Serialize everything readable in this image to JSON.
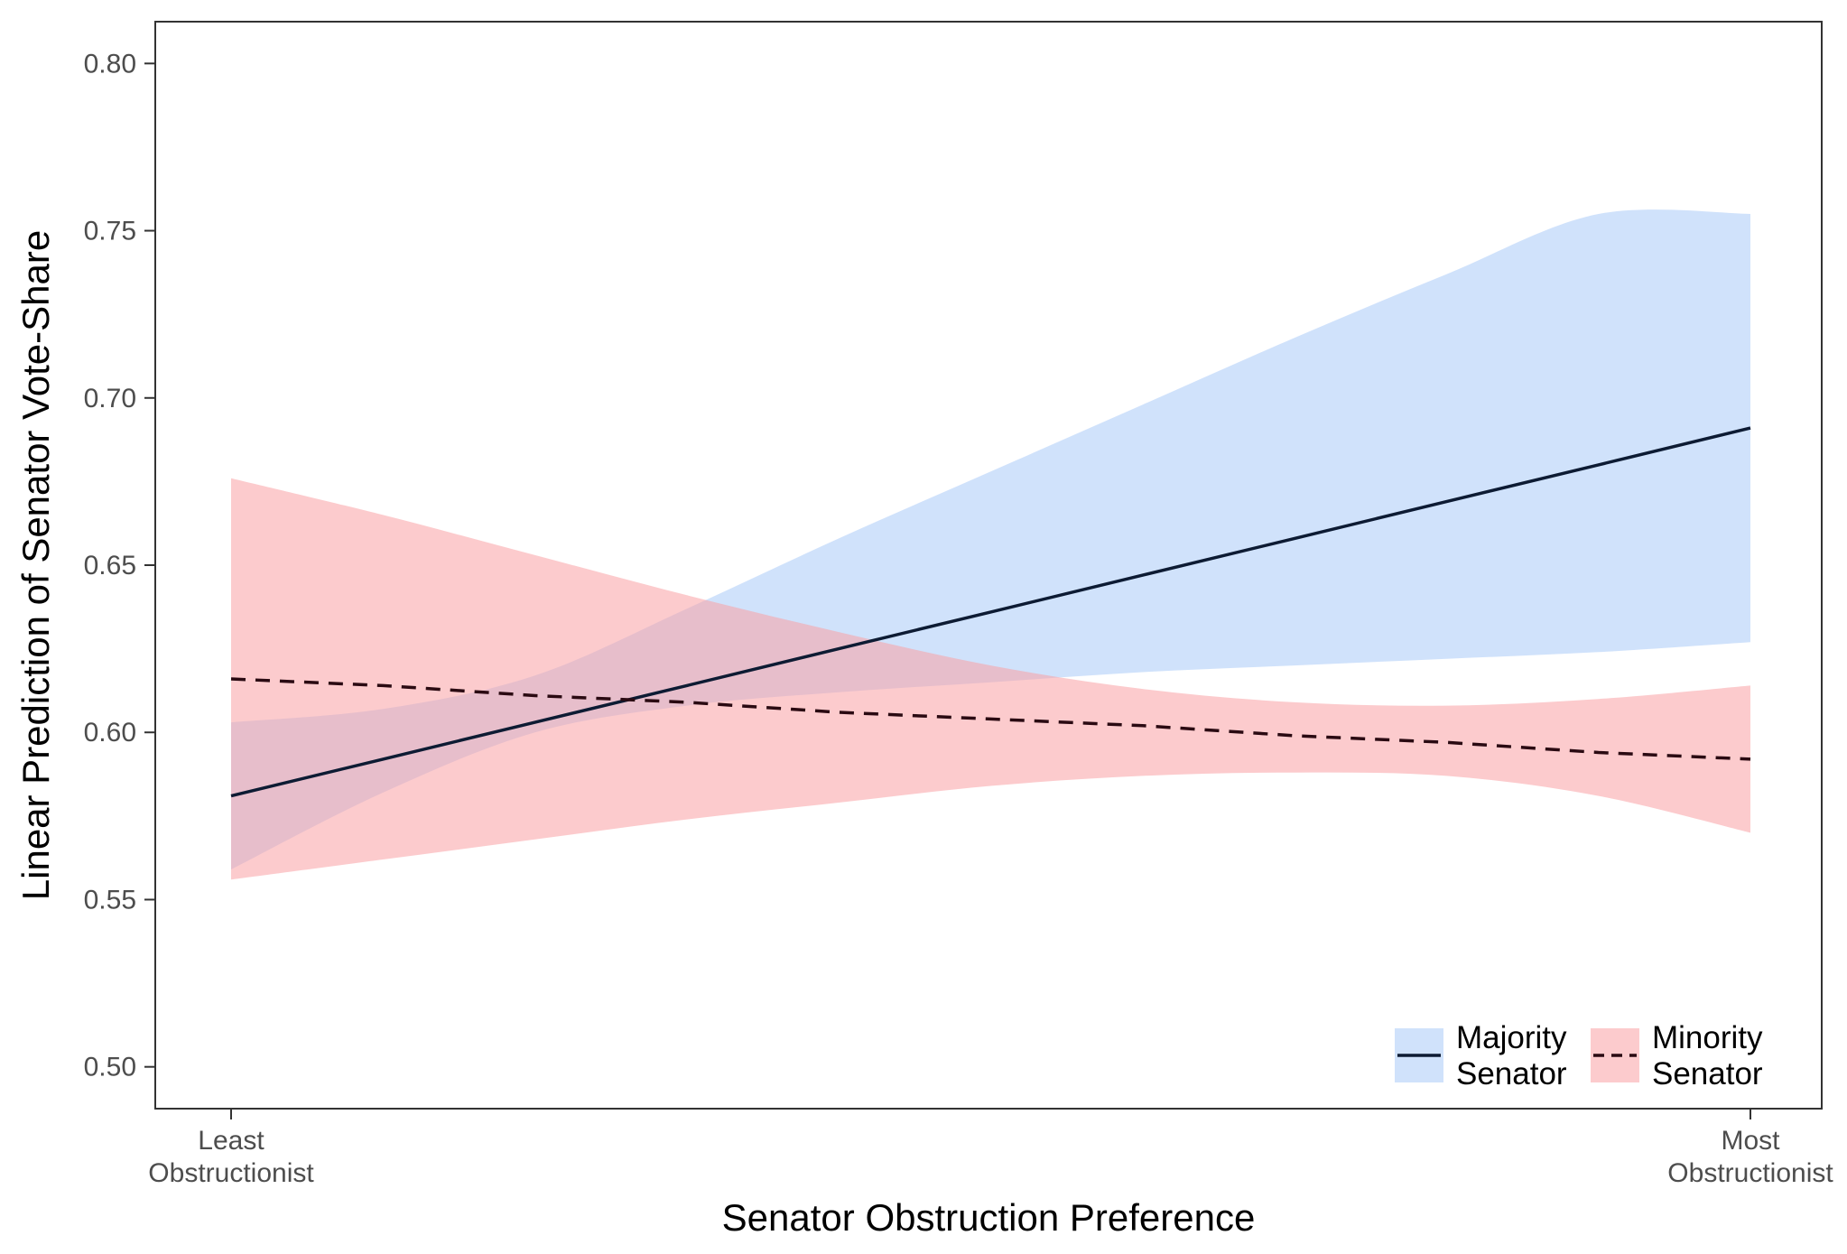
{
  "chart_data": {
    "type": "line",
    "xlabel": "Senator Obstruction Preference",
    "ylabel": "Linear Prediction of Senator Vote-Share",
    "xlim": [
      0,
      1
    ],
    "ylim": [
      0.4875,
      0.8125
    ],
    "y_ticks": [
      0.5,
      0.55,
      0.6,
      0.65,
      0.7,
      0.75,
      0.8
    ],
    "y_tick_labels": [
      "0.50",
      "0.55",
      "0.60",
      "0.65",
      "0.70",
      "0.75",
      "0.80"
    ],
    "x_ticks": [
      {
        "value": 0,
        "label_line1": "Least",
        "label_line2": "Obstructionist"
      },
      {
        "value": 1,
        "label_line1": "Most",
        "label_line2": "Obstructionist"
      }
    ],
    "legend_position": "bottom-right",
    "grid": false,
    "series": [
      {
        "name_line1": "Majority",
        "name_line2": "Senator",
        "line_style": "solid",
        "line_color": "#0d1b33",
        "band_color": "#a9cbf7",
        "band_opacity": 0.55,
        "x": [
          0,
          0.1,
          0.2,
          0.3,
          0.4,
          0.5,
          0.6,
          0.7,
          0.8,
          0.9,
          1.0
        ],
        "y": [
          0.581,
          0.592,
          0.603,
          0.614,
          0.625,
          0.636,
          0.647,
          0.658,
          0.669,
          0.68,
          0.691
        ],
        "lower": [
          0.559,
          0.582,
          0.6,
          0.608,
          0.612,
          0.615,
          0.618,
          0.62,
          0.622,
          0.624,
          0.627
        ],
        "upper": [
          0.603,
          0.607,
          0.617,
          0.637,
          0.658,
          0.678,
          0.698,
          0.718,
          0.737,
          0.755,
          0.755
        ]
      },
      {
        "name_line1": "Minority",
        "name_line2": "Senator",
        "line_style": "dashed",
        "line_color": "#2a0a12",
        "band_color": "#f9a0a4",
        "band_opacity": 0.55,
        "x": [
          0,
          0.1,
          0.2,
          0.3,
          0.4,
          0.5,
          0.6,
          0.7,
          0.8,
          0.9,
          1.0
        ],
        "y": [
          0.616,
          0.614,
          0.611,
          0.609,
          0.606,
          0.604,
          0.602,
          0.599,
          0.597,
          0.594,
          0.592
        ],
        "lower": [
          0.556,
          0.562,
          0.568,
          0.574,
          0.579,
          0.584,
          0.587,
          0.588,
          0.587,
          0.581,
          0.57
        ],
        "upper": [
          0.676,
          0.665,
          0.653,
          0.641,
          0.63,
          0.62,
          0.613,
          0.609,
          0.608,
          0.61,
          0.614
        ]
      }
    ]
  }
}
